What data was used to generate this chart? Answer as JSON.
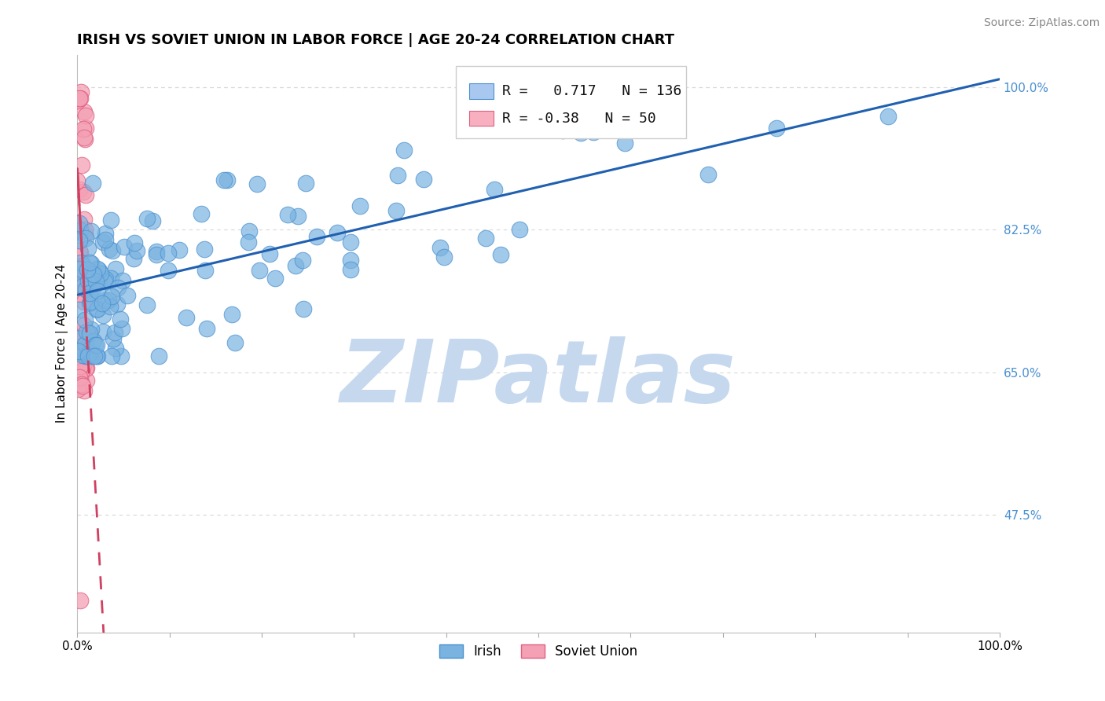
{
  "title": "IRISH VS SOVIET UNION IN LABOR FORCE | AGE 20-24 CORRELATION CHART",
  "source_text": "Source: ZipAtlas.com",
  "ylabel": "In Labor Force | Age 20-24",
  "xlim": [
    0.0,
    1.0
  ],
  "ylim": [
    0.33,
    1.04
  ],
  "yticks": [
    0.475,
    0.65,
    0.825,
    1.0
  ],
  "ytick_labels": [
    "47.5%",
    "65.0%",
    "82.5%",
    "100.0%"
  ],
  "irish_R": 0.717,
  "irish_N": 136,
  "soviet_R": -0.38,
  "soviet_N": 50,
  "irish_color": "#7ab3e0",
  "irish_edge_color": "#4a90d0",
  "soviet_color": "#f4a0b5",
  "soviet_edge_color": "#e06080",
  "irish_line_color": "#2060b0",
  "soviet_line_color": "#d04060",
  "watermark": "ZIPatlas",
  "watermark_color": "#c5d8ee",
  "legend_box_color_irish": "#a8c8f0",
  "legend_box_color_soviet": "#f8b0c0",
  "grid_color": "#d8d8d8",
  "title_fontsize": 13,
  "axis_label_fontsize": 11,
  "tick_fontsize": 11,
  "legend_fontsize": 13,
  "source_fontsize": 10,
  "right_tick_color": "#4a90d0",
  "dot_size": 220
}
